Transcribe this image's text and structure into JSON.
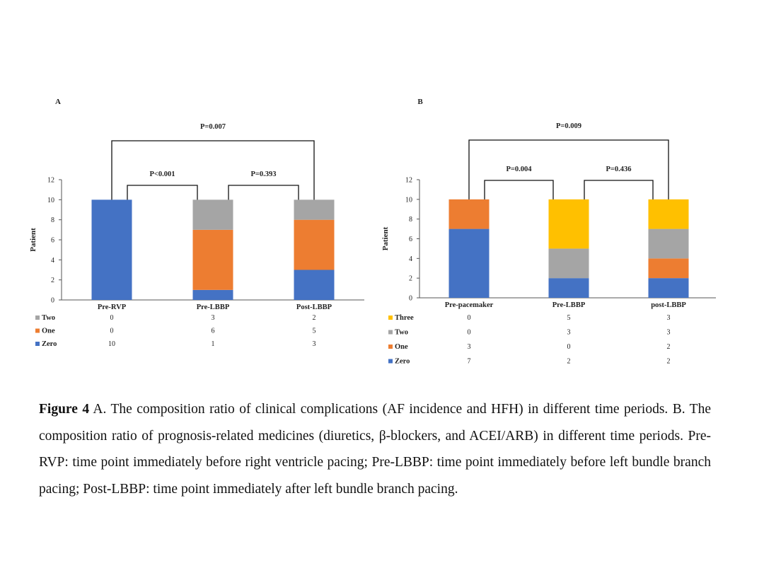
{
  "chart_data": [
    {
      "type": "bar",
      "stacked": true,
      "panel_label": "A",
      "ylabel": "Patient",
      "ylim": [
        0,
        12
      ],
      "yticks": [
        0,
        2,
        4,
        6,
        8,
        10,
        12
      ],
      "categories": [
        "Pre-RVP",
        "Pre-LBBP",
        "Post-LBBP"
      ],
      "series": [
        {
          "name": "Zero",
          "color": "#4472C4",
          "values": [
            10,
            1,
            3
          ]
        },
        {
          "name": "One",
          "color": "#ED7D31",
          "values": [
            0,
            6,
            5
          ]
        },
        {
          "name": "Two",
          "color": "#A5A5A5",
          "values": [
            0,
            3,
            2
          ]
        }
      ],
      "table_rows": [
        "Two",
        "One",
        "Zero"
      ],
      "comparisons": [
        {
          "from": 0,
          "to": 1,
          "label": "P<0.001",
          "level": 1
        },
        {
          "from": 1,
          "to": 2,
          "label": "P=0.393",
          "level": 1
        },
        {
          "from": 0,
          "to": 2,
          "label": "P=0.007",
          "level": 2
        }
      ]
    },
    {
      "type": "bar",
      "stacked": true,
      "panel_label": "B",
      "ylabel": "Patient",
      "ylim": [
        0,
        12
      ],
      "yticks": [
        0,
        2,
        4,
        6,
        8,
        10,
        12
      ],
      "categories": [
        "Pre-pacemaker",
        "Pre-LBBP",
        "post-LBBP"
      ],
      "series": [
        {
          "name": "Zero",
          "color": "#4472C4",
          "values": [
            7,
            2,
            2
          ]
        },
        {
          "name": "One",
          "color": "#ED7D31",
          "values": [
            3,
            0,
            2
          ]
        },
        {
          "name": "Two",
          "color": "#A5A5A5",
          "values": [
            0,
            3,
            3
          ]
        },
        {
          "name": "Three",
          "color": "#FFC000",
          "values": [
            0,
            5,
            3
          ]
        }
      ],
      "table_rows": [
        "Three",
        "Two",
        "One",
        "Zero"
      ],
      "comparisons": [
        {
          "from": 0,
          "to": 1,
          "label": "P=0.004",
          "level": 1
        },
        {
          "from": 1,
          "to": 2,
          "label": "P=0.436",
          "level": 1
        },
        {
          "from": 0,
          "to": 2,
          "label": "P=0.009",
          "level": 2
        }
      ]
    }
  ],
  "caption": {
    "label": "Figure 4",
    "text": " A. The composition ratio of clinical complications (AF incidence and HFH) in different time periods. B. The composition ratio of prognosis-related medicines (diuretics, β-blockers, and ACEI/ARB) in different time periods. Pre-RVP: time point immediately before right ventricle pacing; Pre-LBBP: time point immediately before left bundle branch pacing; Post-LBBP: time point immediately after left bundle branch pacing."
  }
}
